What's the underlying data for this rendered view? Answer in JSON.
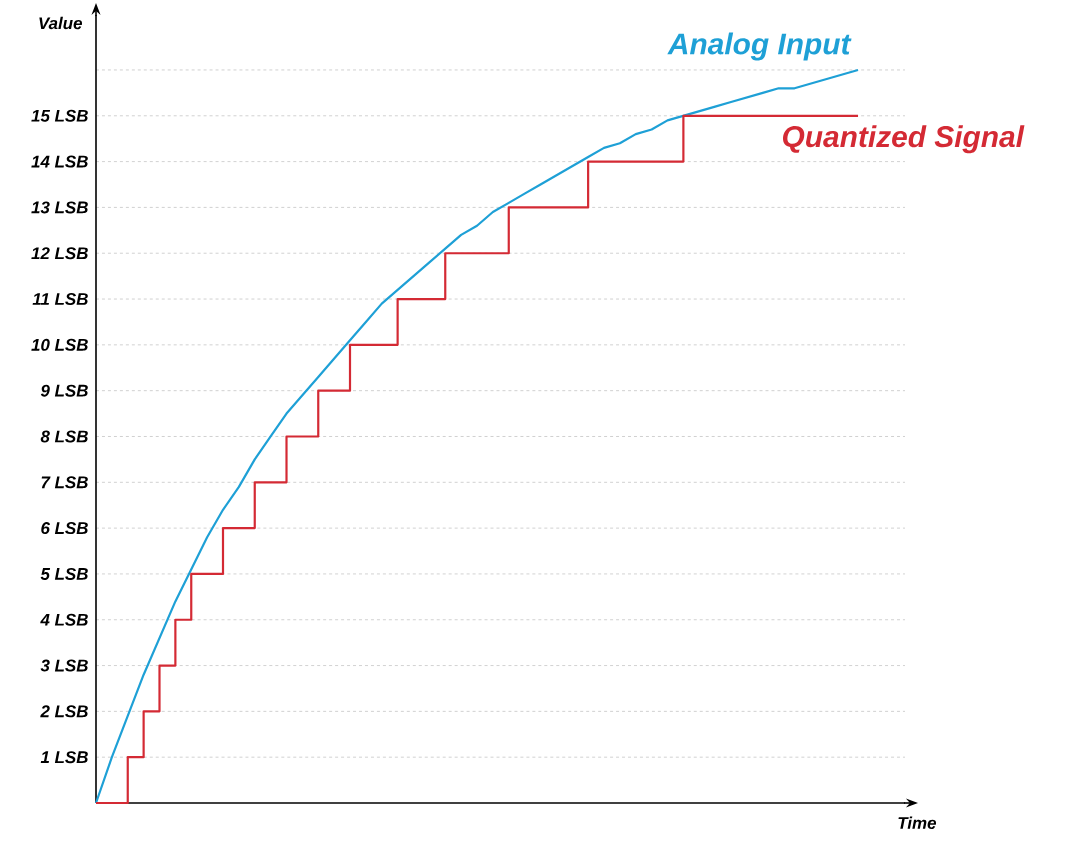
{
  "chart_data": {
    "type": "line",
    "xlabel": "Time",
    "ylabel": "Value",
    "categories": [
      null,
      null,
      null,
      null,
      null,
      null,
      null,
      null,
      null,
      null,
      null,
      null,
      null,
      null,
      null,
      null,
      null,
      null,
      null,
      null,
      null,
      null,
      null,
      null,
      null,
      null,
      null,
      null,
      null,
      null,
      null,
      null,
      null,
      null,
      null,
      null,
      null,
      null,
      null,
      null,
      null,
      null,
      null,
      null,
      null,
      null,
      null,
      null,
      null
    ],
    "series": [
      {
        "name": "Analog Input",
        "color": "#1ea0d6",
        "values": [
          0,
          1.0,
          1.9,
          2.8,
          3.6,
          4.4,
          5.1,
          5.8,
          6.4,
          6.9,
          7.5,
          8.0,
          8.5,
          8.9,
          9.3,
          9.7,
          10.1,
          10.5,
          10.9,
          11.2,
          11.5,
          11.8,
          12.1,
          12.4,
          12.6,
          12.9,
          13.1,
          13.3,
          13.5,
          13.7,
          13.9,
          14.1,
          14.3,
          14.4,
          14.6,
          14.7,
          14.9,
          15.0,
          15.1,
          15.2,
          15.3,
          15.4,
          15.5,
          15.6,
          15.6,
          15.7,
          15.8,
          15.9,
          16.0
        ]
      },
      {
        "name": "Quantized Signal",
        "type": "step",
        "color": "#d42a34",
        "values": [
          0,
          0,
          1,
          2,
          3,
          4,
          5,
          5,
          6,
          6,
          7,
          7,
          8,
          8,
          9,
          9,
          10,
          10,
          10,
          11,
          11,
          11,
          12,
          12,
          12,
          12,
          13,
          13,
          13,
          13,
          13,
          14,
          14,
          14,
          14,
          14,
          14,
          15,
          15,
          15,
          15,
          15,
          15,
          15,
          15,
          15,
          15,
          15,
          15
        ]
      }
    ],
    "ylim": [
      0,
      17.2
    ],
    "yticks": [
      {
        "value": 1,
        "label": "1 LSB"
      },
      {
        "value": 2,
        "label": "2 LSB"
      },
      {
        "value": 3,
        "label": "3 LSB"
      },
      {
        "value": 4,
        "label": "4 LSB"
      },
      {
        "value": 5,
        "label": "5 LSB"
      },
      {
        "value": 6,
        "label": "6 LSB"
      },
      {
        "value": 7,
        "label": "7 LSB"
      },
      {
        "value": 8,
        "label": "8 LSB"
      },
      {
        "value": 9,
        "label": "9 LSB"
      },
      {
        "value": 10,
        "label": "10 LSB"
      },
      {
        "value": 11,
        "label": "11 LSB"
      },
      {
        "value": 12,
        "label": "12 LSB"
      },
      {
        "value": 13,
        "label": "13 LSB"
      },
      {
        "value": 14,
        "label": "14 LSB"
      },
      {
        "value": 15,
        "label": "15 LSB"
      },
      {
        "value": 16,
        "label": null
      }
    ],
    "grid": "y",
    "legend": false,
    "marker": "none",
    "line_style": "solid"
  }
}
